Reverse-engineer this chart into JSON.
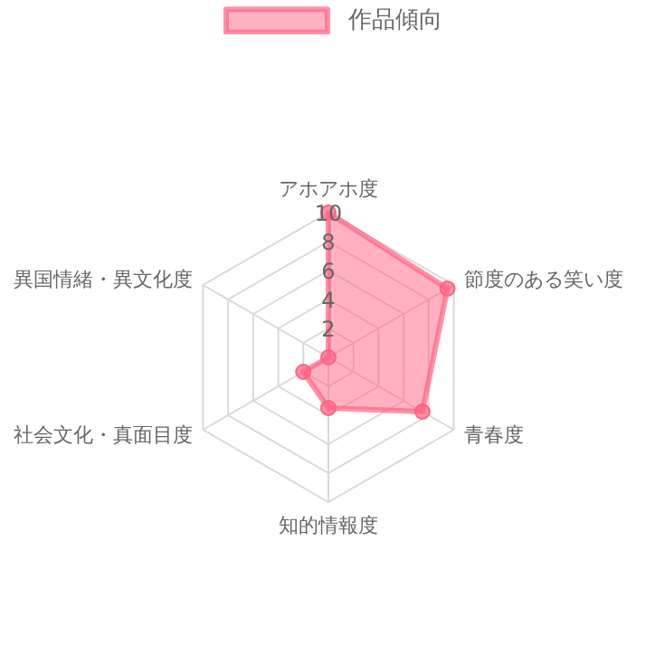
{
  "chart_data": {
    "type": "radar",
    "categories": [
      "アホアホ度",
      "節度のある笑い度",
      "青春度",
      "知的情報度",
      "社会文化・真面目度",
      "異国情緒・異文化度"
    ],
    "series": [
      {
        "name": "作品傾向",
        "color": "#ff6384",
        "values": [
          10,
          9.5,
          7.5,
          3.5,
          2,
          0
        ]
      }
    ],
    "ylim": [
      0,
      10
    ],
    "yticks": [
      2,
      4,
      6,
      8,
      10
    ],
    "legend": "top",
    "marker": "circle",
    "grid": true
  }
}
